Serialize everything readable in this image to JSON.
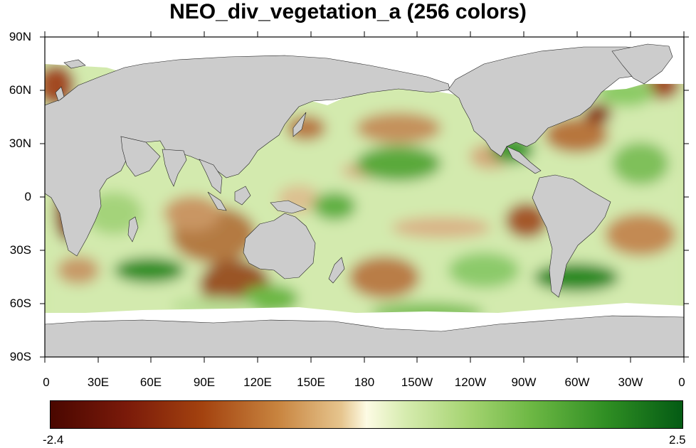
{
  "title": "NEO_div_vegetation_a (256 colors)",
  "y_axis_labels": [
    "90N",
    "60N",
    "30N",
    "0",
    "30S",
    "60S",
    "90S"
  ],
  "x_axis_labels": [
    "0",
    "30E",
    "60E",
    "90E",
    "120E",
    "150E",
    "180",
    "150W",
    "120W",
    "90W",
    "60W",
    "30W",
    "0"
  ],
  "colorbar": {
    "min_label": "-2.4",
    "max_label": "2.5",
    "colors": [
      "#4a0700",
      "#a3420f",
      "#e6c58e",
      "#fdfbe4",
      "#a6d472",
      "#2f8e23",
      "#045b14"
    ]
  },
  "land_color": "#cccccc",
  "missing_color": "#ffffff",
  "map_extent": {
    "lon": [
      0,
      360
    ],
    "lat": [
      -90,
      90
    ]
  }
}
